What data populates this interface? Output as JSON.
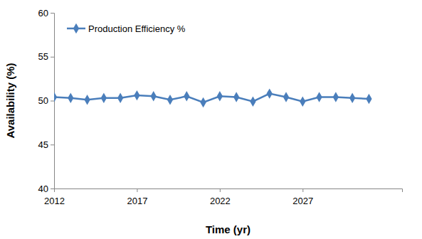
{
  "chart_data": {
    "type": "line",
    "x_label": "Time (yr)",
    "y_label": "Availability (%)",
    "x": [
      2012,
      2013,
      2014,
      2015,
      2016,
      2017,
      2018,
      2019,
      2020,
      2021,
      2022,
      2023,
      2024,
      2025,
      2026,
      2027,
      2028,
      2029,
      2030,
      2031
    ],
    "series": [
      {
        "name": "Production Efficiency %",
        "color": "#4a7ebb",
        "marker": "diamond",
        "values": [
          50.4,
          50.3,
          50.1,
          50.3,
          50.3,
          50.6,
          50.5,
          50.1,
          50.5,
          49.8,
          50.5,
          50.4,
          49.9,
          50.8,
          50.4,
          49.9,
          50.4,
          50.4,
          50.3,
          50.2
        ]
      }
    ],
    "xlim": [
      2012,
      2033
    ],
    "xticks": [
      2012,
      2017,
      2022,
      2027
    ],
    "ylim": [
      40,
      60
    ],
    "yticks": [
      40,
      45,
      50,
      55,
      60
    ],
    "grid": false,
    "legend": "upper left"
  }
}
